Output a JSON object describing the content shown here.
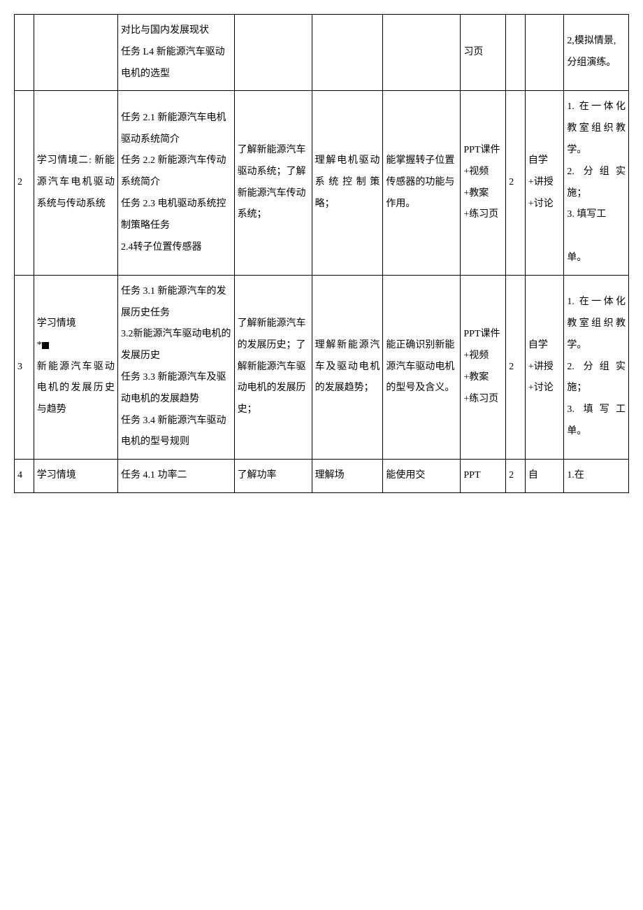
{
  "colors": {
    "background": "#ffffff",
    "border": "#000000",
    "text": "#000000"
  },
  "typography": {
    "font_family": "SimSun",
    "font_size_pt": 10.5,
    "line_height": 2.2
  },
  "table": {
    "columns": [
      {
        "key": "num",
        "width_pct": 3
      },
      {
        "key": "situation",
        "width_pct": 13
      },
      {
        "key": "task",
        "width_pct": 18
      },
      {
        "key": "know",
        "width_pct": 12
      },
      {
        "key": "skill",
        "width_pct": 11
      },
      {
        "key": "ability",
        "width_pct": 12
      },
      {
        "key": "resource",
        "width_pct": 7
      },
      {
        "key": "hours",
        "width_pct": 3
      },
      {
        "key": "method",
        "width_pct": 6
      },
      {
        "key": "org",
        "width_pct": 10
      }
    ],
    "rows": [
      {
        "num": "",
        "situation": "",
        "task": "对比与国内发展现状\n任务 L4 新能源汽车驱动电机的选型",
        "know": "",
        "skill": "",
        "ability": "",
        "resource": "习页",
        "hours": "",
        "method": "",
        "org": "2,模拟情景,分组演练。"
      },
      {
        "num": "2",
        "situation": "学习情境二: 新能源汽车电机驱动系统与传动系统",
        "task": "任务 2.1 新能源汽车电机驱动系统简介\n任务 2.2 新能源汽车传动系统简介\n任务 2.3 电机驱动系统控制策略任务\n2.4转子位置传感器",
        "know": "了解新能源汽车驱动系统；了解新能源汽车传动系统；",
        "skill": "理解电机驱动系统控制策略；",
        "ability": "能掌握转子位置传感器的功能与作用。",
        "resource": "PPT课件+视频+教案+练习页",
        "hours": "2",
        "method": "自学+讲授+讨论",
        "org": "1. 在一体化教室组织教学。\n2. 分组实施；\n3. 填写工\n\n单。"
      },
      {
        "num": "3",
        "situation_prefix": "学习情境\n*",
        "situation_suffix": "\n新能源汽车驱动电机的发展历史与趋势",
        "task": "任务 3.1 新能源汽车的发展历史任务\n3.2新能源汽车驱动电机的发展历史\n任务 3.3 新能源汽车及驱动电机的发展趋势\n任务 3.4 新能源汽车驱动电机的型号规则",
        "know": "了解新能源汽车的发展历史；了解新能源汽车驱动电机的发展历史；",
        "skill": "理解新能源汽车及驱动电机的发展趋势；",
        "ability": "能正确识别新能源汽车驱动电机的型号及含义。",
        "resource": "PPT课件+视频+教案+练习页",
        "hours": "2",
        "method": "自学+讲授+讨论",
        "org": "1. 在一体化教室组织教学。\n2. 分组实施；\n3. 填写工单。"
      },
      {
        "num": "4",
        "situation": "学习情境",
        "task": "任务 4.1 功率二",
        "know": "了解功率",
        "skill": "理解场",
        "ability": "能使用交",
        "resource": "PPT",
        "hours": "2",
        "method": "自",
        "org": "1.在"
      }
    ]
  }
}
